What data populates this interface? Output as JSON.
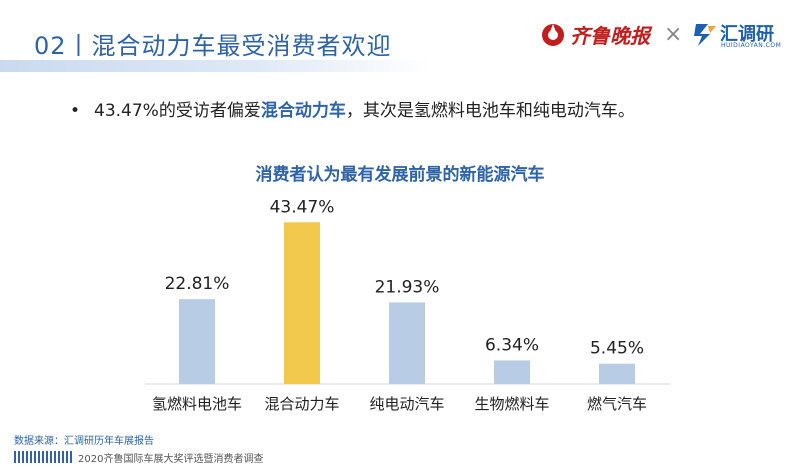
{
  "header": {
    "title": "02丨混合动力车最受消费者欢迎",
    "logo_qilu": "齐鲁晚报",
    "logo_separator": "×",
    "logo_hdy": "汇调研",
    "logo_hdy_sub": "HUIDIAOYAN.COM"
  },
  "bullet": {
    "prefix": "43.47%的受访者偏爱",
    "highlight": "混合动力车",
    "suffix": "，其次是氢燃料电池车和纯电动汽车。"
  },
  "chart_data": {
    "type": "bar",
    "title": "消费者认为最有发展前景的新能源汽车",
    "categories": [
      "氢燃料电池车",
      "混合动力车",
      "纯电动汽车",
      "生物燃料车",
      "燃气汽车"
    ],
    "values": [
      22.81,
      43.47,
      21.93,
      6.34,
      5.45
    ],
    "value_labels": [
      "22.81%",
      "43.47%",
      "21.93%",
      "6.34%",
      "5.45%"
    ],
    "ylim": [
      0,
      50
    ],
    "colors": [
      "#b8cce6",
      "#f2c94c",
      "#b8cce6",
      "#b8cce6",
      "#b8cce6"
    ],
    "grid": false,
    "legend": "none"
  },
  "footer": {
    "source": "数据来源：汇调研历年车展报告",
    "event": "2020齐鲁国际车展大奖评选暨消费者调查"
  }
}
